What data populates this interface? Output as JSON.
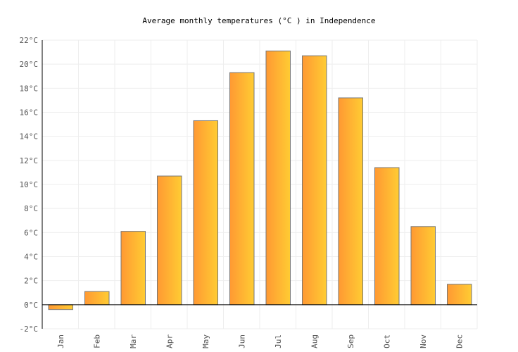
{
  "chart_data": {
    "type": "bar",
    "title": "Average monthly temperatures (°C ) in Independence",
    "categories": [
      "Jan",
      "Feb",
      "Mar",
      "Apr",
      "May",
      "Jun",
      "Jul",
      "Aug",
      "Sep",
      "Oct",
      "Nov",
      "Dec"
    ],
    "values": [
      -0.4,
      1.1,
      6.1,
      10.7,
      15.3,
      19.3,
      21.1,
      20.7,
      17.2,
      11.4,
      6.5,
      1.7
    ],
    "ylim": [
      -2,
      22
    ],
    "yticks": [
      -2,
      0,
      2,
      4,
      6,
      8,
      10,
      12,
      14,
      16,
      18,
      20,
      22
    ],
    "ytick_unit": "°C",
    "grid": true,
    "colors": {
      "bar_start": "#ff9933",
      "bar_end": "#ffcc33",
      "bar_stroke": "#777777",
      "grid": "#eeeeee"
    }
  }
}
